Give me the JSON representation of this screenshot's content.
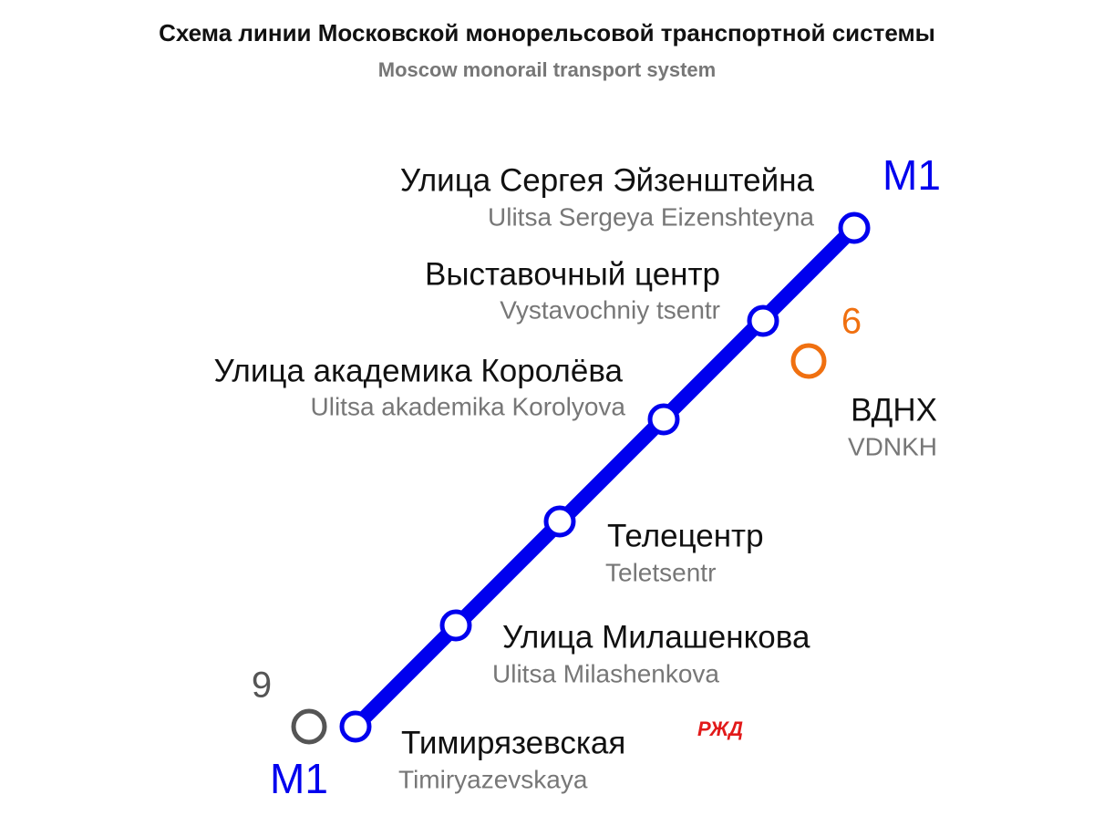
{
  "header": {
    "title": "Схема линии Московской монорельсовой транспортной системы",
    "subtitle": "Moscow monorail transport system"
  },
  "line": {
    "label_top": "M1",
    "label_bottom": "M1"
  },
  "stations": [
    {
      "name_ru": "Улица Сергея Эйзенштейна",
      "name_en": "Ulitsa Sergeya Eizenshteyna"
    },
    {
      "name_ru": "Выставочный центр",
      "name_en": "Vystavochniy  tsentr"
    },
    {
      "name_ru": "Улица академика Королёва",
      "name_en": "Ulitsa akademika Korolyova"
    },
    {
      "name_ru": "Телецентр",
      "name_en": "Teletsentr"
    },
    {
      "name_ru": "Улица Милашенкова",
      "name_en": "Ulitsa Milashenkova"
    },
    {
      "name_ru": "Тимирязевская",
      "name_en": "Timiryazevskaya"
    }
  ],
  "transfers": [
    {
      "line": "6",
      "name_ru": "ВДНХ",
      "name_en": "VDNKH"
    },
    {
      "line": "9"
    }
  ],
  "rail_logo": "РЖД"
}
